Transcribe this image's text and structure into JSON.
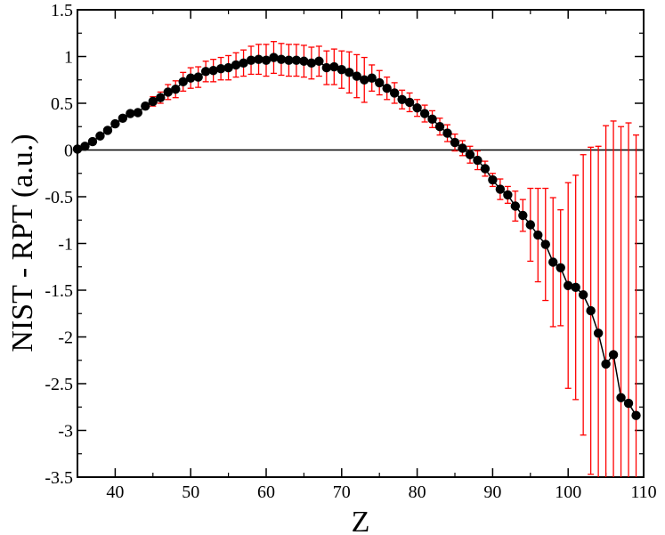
{
  "chart_data": {
    "type": "scatter",
    "xlabel": "Z",
    "ylabel": "NIST - RPT (a.u.)",
    "xlim": [
      35,
      110
    ],
    "ylim": [
      -3.5,
      1.5
    ],
    "xticks": [
      "40",
      "50",
      "60",
      "70",
      "80",
      "90",
      "100",
      "110"
    ],
    "yticks": [
      "1.5",
      "1",
      "0.5",
      "0",
      "-0.5",
      "-1",
      "-1.5",
      "-2",
      "-2.5",
      "-3",
      "-3.5"
    ],
    "grid": false,
    "reference_line_y": 0,
    "colors": {
      "points": "#000000",
      "line": "#000000",
      "error_bars": "#ff0000",
      "zero_line": "#000000"
    },
    "series": [
      {
        "x": [
          35,
          36,
          37,
          38,
          39,
          40,
          41,
          42,
          43,
          44,
          45,
          46,
          47,
          48,
          49,
          50,
          51,
          52,
          53,
          54,
          55,
          56,
          57,
          58,
          59,
          60,
          61,
          62,
          63,
          64,
          65,
          66,
          67,
          68,
          69,
          70,
          71,
          72,
          73,
          74,
          75,
          76,
          77,
          78,
          79,
          80,
          81,
          82,
          83,
          84,
          85,
          86,
          87,
          88,
          89,
          90,
          91,
          92,
          93,
          94,
          95,
          96,
          97,
          98,
          99,
          100,
          101,
          102,
          103,
          104,
          105,
          106,
          107,
          108,
          109
        ],
        "y": [
          0.01,
          0.04,
          0.09,
          0.15,
          0.21,
          0.28,
          0.34,
          0.39,
          0.4,
          0.47,
          0.52,
          0.56,
          0.62,
          0.65,
          0.73,
          0.77,
          0.78,
          0.84,
          0.85,
          0.87,
          0.88,
          0.91,
          0.93,
          0.96,
          0.97,
          0.96,
          0.99,
          0.97,
          0.96,
          0.96,
          0.95,
          0.93,
          0.95,
          0.88,
          0.89,
          0.86,
          0.83,
          0.79,
          0.75,
          0.77,
          0.72,
          0.66,
          0.61,
          0.54,
          0.51,
          0.45,
          0.39,
          0.33,
          0.25,
          0.18,
          0.08,
          0.02,
          -0.05,
          -0.11,
          -0.2,
          -0.32,
          -0.42,
          -0.48,
          -0.6,
          -0.7,
          -0.8,
          -0.91,
          -1.01,
          -1.2,
          -1.26,
          -1.45,
          -1.47,
          -1.55,
          -1.72,
          -1.96,
          -2.29,
          -2.19,
          -2.65,
          -2.71,
          -2.84
        ],
        "err": [
          0,
          0,
          0,
          0,
          0,
          0,
          0,
          0,
          0,
          0,
          0.05,
          0.06,
          0.08,
          0.09,
          0.1,
          0.11,
          0.11,
          0.11,
          0.12,
          0.12,
          0.13,
          0.13,
          0.14,
          0.15,
          0.16,
          0.17,
          0.17,
          0.17,
          0.17,
          0.17,
          0.17,
          0.17,
          0.16,
          0.18,
          0.19,
          0.2,
          0.22,
          0.23,
          0.24,
          0.14,
          0.13,
          0.12,
          0.11,
          0.1,
          0.1,
          0.09,
          0.09,
          0.09,
          0.09,
          0.09,
          0.09,
          0.08,
          0.09,
          0.1,
          0.08,
          0.07,
          0.11,
          0.09,
          0.16,
          0.17,
          0.39,
          0.5,
          0.6,
          0.69,
          0.62,
          1.1,
          1.2,
          1.5,
          1.75,
          2.0,
          2.55,
          2.5,
          2.9,
          3.0,
          3.0
        ]
      }
    ]
  }
}
